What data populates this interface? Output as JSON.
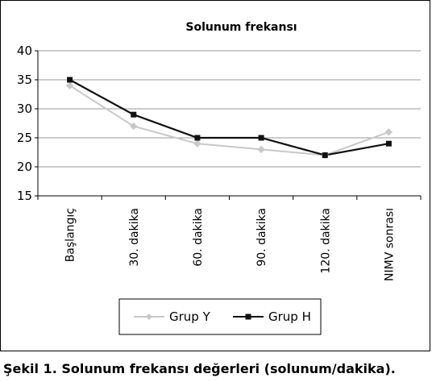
{
  "chart_data": {
    "type": "line",
    "title": "Solunum frekansı",
    "categories": [
      "Başlangıç",
      "30. dakika",
      "60. dakika",
      "90. dakika",
      "120. dakika",
      "NIMV sonrası"
    ],
    "ylim": [
      15,
      40
    ],
    "yticks": [
      15,
      20,
      25,
      30,
      35,
      40
    ],
    "grid": true,
    "legend_position": "bottom",
    "series": [
      {
        "name": "Grup Y",
        "values": [
          34,
          27,
          24,
          23,
          22,
          26
        ],
        "color": "#c8c8c8",
        "marker": "diamond"
      },
      {
        "name": "Grup H",
        "values": [
          35,
          29,
          25,
          25,
          22,
          24
        ],
        "color": "#111111",
        "marker": "square"
      }
    ]
  },
  "caption": {
    "prefix": "Şekil 1.",
    "text": "Solunum frekansı değerleri (solunum/dakika)."
  }
}
